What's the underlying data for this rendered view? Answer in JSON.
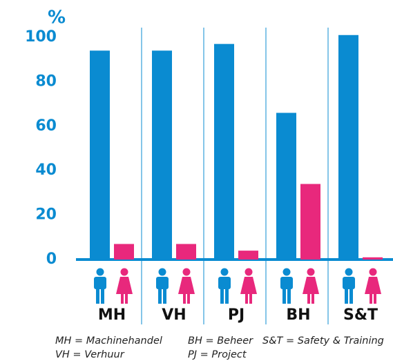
{
  "chart_data": {
    "type": "bar",
    "y_label": "%",
    "categories": [
      "MH",
      "VH",
      "PJ",
      "BH",
      "S&T"
    ],
    "series": [
      {
        "color": "#0a8bd1",
        "values": [
          94,
          94,
          97,
          66,
          101
        ]
      },
      {
        "color": "#e8287c",
        "values": [
          7,
          7,
          4,
          34,
          1
        ]
      }
    ],
    "ylim": [
      0,
      100
    ],
    "yticks": [
      0,
      20,
      40,
      60,
      80,
      100
    ],
    "grid": false,
    "notes": [
      "MH = Machinehandel",
      "BH = Beheer",
      "S&T = Safety & Training",
      "VH = Verhuur",
      "PJ = Project"
    ]
  }
}
